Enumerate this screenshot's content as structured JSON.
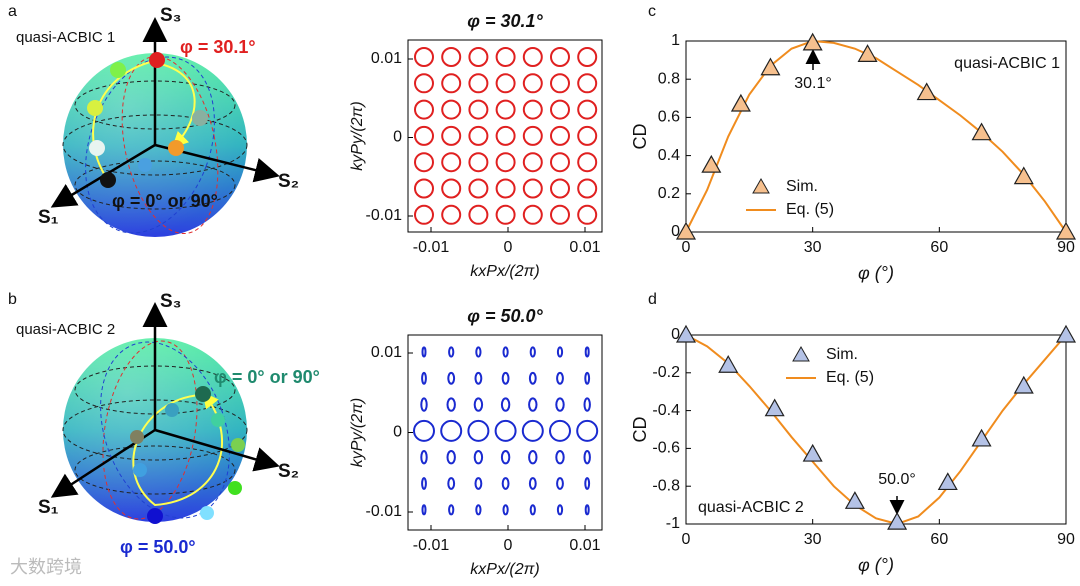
{
  "panels": [
    {
      "letter": "a",
      "name": "quasi-ACBIC 1",
      "axes": [
        "S₁",
        "S₂",
        "S₃"
      ],
      "labels": [
        "φ = 30.1°",
        "φ = 0° or 90°"
      ]
    },
    {
      "letter": "b",
      "name": "quasi-ACBIC 2",
      "axes": [
        "S₁",
        "S₂",
        "S₃"
      ],
      "labels": [
        "φ = 0° or 90°",
        "φ = 50.0°"
      ]
    },
    {
      "letter": "c"
    },
    {
      "letter": "d"
    }
  ],
  "maps": [
    {
      "title": "φ = 30.1°",
      "xlabel": "kxPx/(2π)",
      "ylabel": "kyPy/(2π)",
      "color": "#e02020",
      "xticks": [
        -0.01,
        0,
        0.01
      ],
      "yticks": [
        -0.01,
        0,
        0.01
      ]
    },
    {
      "title": "φ = 50.0°",
      "xlabel": "kxPx/(2π)",
      "ylabel": "kyPy/(2π)",
      "color": "#1a2ad0",
      "xticks": [
        -0.01,
        0,
        0.01
      ],
      "yticks": [
        -0.01,
        0,
        0.01
      ]
    }
  ],
  "watermark": "大数跨境",
  "chart_data": [
    {
      "type": "line",
      "xlabel": "φ (°)",
      "ylabel": "CD",
      "xlim": [
        0,
        90
      ],
      "xticks": [
        0,
        30,
        60,
        90
      ],
      "ylim": [
        0,
        1
      ],
      "yticks": [
        0,
        0.2,
        0.4,
        0.6,
        0.8,
        1
      ],
      "legend": "lower left",
      "annotations": [
        "30.1°",
        "quasi-ACBIC 1"
      ],
      "series": [
        {
          "name": "Sim.",
          "color": "#f6c08e",
          "marker": "triangle",
          "x": [
            0,
            6,
            13,
            20,
            30,
            43,
            57,
            70,
            80,
            90
          ],
          "values": [
            0,
            0.35,
            0.67,
            0.86,
            0.99,
            0.93,
            0.73,
            0.52,
            0.29,
            0
          ]
        },
        {
          "name": "Eq. (5)",
          "color": "#f08c1e",
          "x": [
            0,
            5,
            10,
            15,
            20,
            25,
            30,
            35,
            40,
            45,
            50,
            55,
            60,
            65,
            70,
            75,
            80,
            85,
            90
          ],
          "values": [
            0,
            0.22,
            0.5,
            0.72,
            0.87,
            0.96,
            1.0,
            0.99,
            0.96,
            0.91,
            0.84,
            0.77,
            0.69,
            0.61,
            0.52,
            0.42,
            0.3,
            0.16,
            0
          ]
        }
      ]
    },
    {
      "type": "line",
      "xlabel": "φ (°)",
      "ylabel": "CD",
      "xlim": [
        0,
        90
      ],
      "xticks": [
        0,
        30,
        60,
        90
      ],
      "ylim": [
        -1,
        0
      ],
      "yticks": [
        -1,
        -0.8,
        -0.6,
        -0.4,
        -0.2,
        0
      ],
      "legend": "upper left",
      "annotations": [
        "50.0°",
        "quasi-ACBIC 2"
      ],
      "series": [
        {
          "name": "Sim.",
          "color": "#b4c2e6",
          "marker": "triangle",
          "x": [
            0,
            10,
            21,
            30,
            40,
            50,
            62,
            70,
            80,
            90
          ],
          "values": [
            0,
            -0.16,
            -0.39,
            -0.63,
            -0.88,
            -0.99,
            -0.78,
            -0.55,
            -0.27,
            0
          ]
        },
        {
          "name": "Eq. (5)",
          "color": "#f08c1e",
          "x": [
            0,
            5,
            10,
            15,
            20,
            25,
            30,
            35,
            40,
            45,
            50,
            55,
            60,
            65,
            70,
            75,
            80,
            85,
            90
          ],
          "values": [
            0,
            -0.06,
            -0.15,
            -0.27,
            -0.4,
            -0.54,
            -0.67,
            -0.8,
            -0.9,
            -0.97,
            -1.0,
            -0.96,
            -0.86,
            -0.72,
            -0.56,
            -0.4,
            -0.26,
            -0.13,
            0
          ]
        }
      ]
    }
  ]
}
